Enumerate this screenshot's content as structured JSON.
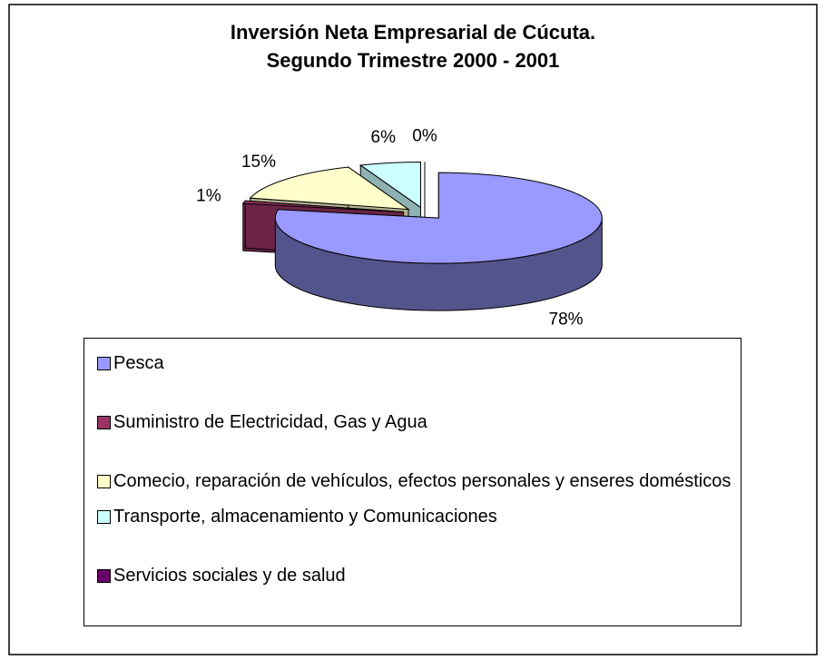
{
  "chart_data": {
    "type": "pie",
    "title": [
      "Inversión Neta Empresarial de Cúcuta.",
      "Segundo Trimestre 2000 - 2001"
    ],
    "categories": [
      "Pesca",
      "Suministro de Electricidad, Gas y Agua",
      "Comecio, reparación de vehículos, efectos personales y enseres domésticos",
      "Transporte, almacenamiento y Comunicaciones",
      "Servicios sociales y de salud"
    ],
    "values": [
      78,
      1,
      15,
      6,
      0
    ],
    "value_labels": [
      "78%",
      "1%",
      "15%",
      "6%",
      "0%"
    ],
    "colors": [
      "#9999ff",
      "#993366",
      "#ffffcc",
      "#ccffff",
      "#660066"
    ],
    "legend": "bottom"
  }
}
